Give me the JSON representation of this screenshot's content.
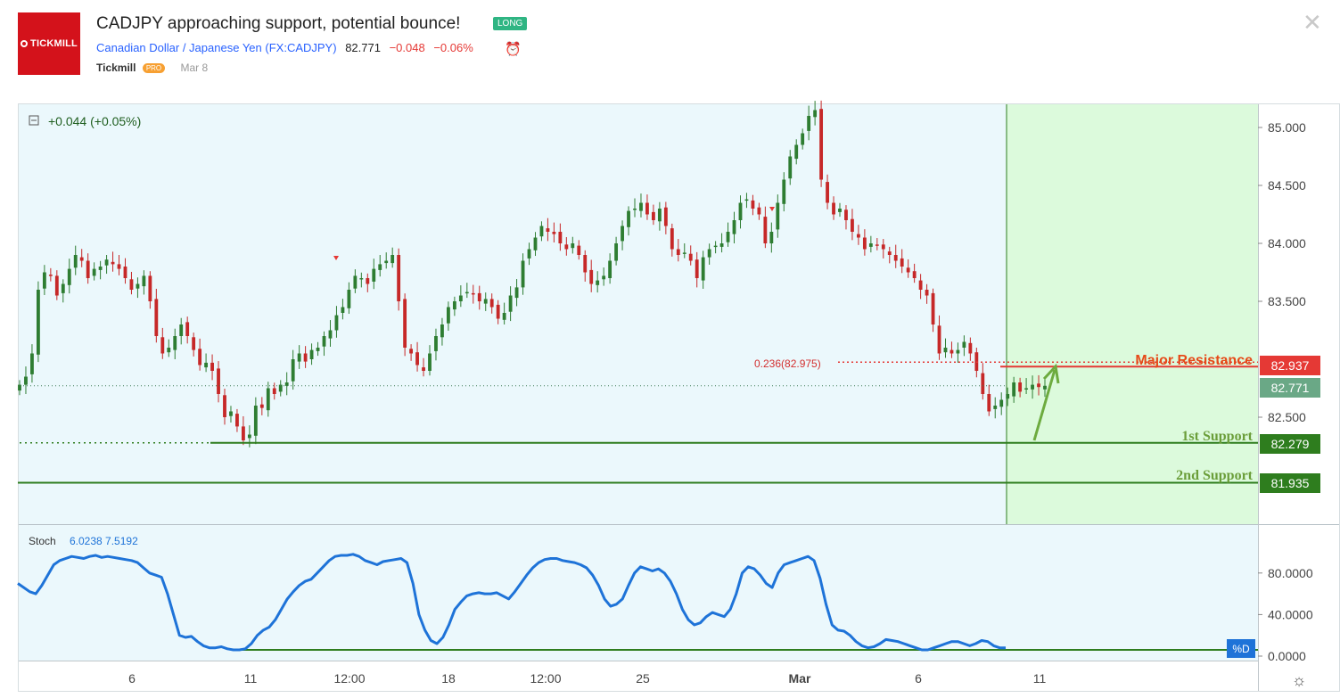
{
  "header": {
    "logo_text": "TICKMILL",
    "title": "CADJPY approaching support, potential bounce!",
    "badge": "LONG",
    "instrument_name": "Canadian Dollar / Japanese Yen",
    "symbol": "(FX:CADJPY)",
    "price": "82.771",
    "change": "−0.048",
    "change_pct": "−0.06%",
    "author": "Tickmill",
    "author_badge": "PRO",
    "date": "Mar 8"
  },
  "colors": {
    "up": "#2e7d32",
    "down": "#c62828",
    "resistance": "#e53935",
    "support": "#2e7d1e",
    "stoch_line": "#1e73d8",
    "target_zone": "#dcfadc",
    "chart_bg": "#ebf8fc"
  },
  "chart_data": [
    {
      "type": "candlestick",
      "legend_text": "+0.044 (+0.05%)",
      "ylim": [
        81.7,
        85.2
      ],
      "y_ticks": [
        "85.000",
        "84.500",
        "84.000",
        "83.500",
        "82.500"
      ],
      "x_tick_labels": [
        "6",
        "11",
        "12:00",
        "18",
        "12:00",
        "25",
        "Mar",
        "6",
        "11"
      ],
      "closes": [
        82.78,
        82.85,
        83.05,
        83.6,
        83.75,
        83.72,
        83.55,
        83.65,
        83.78,
        83.9,
        83.85,
        83.7,
        83.78,
        83.8,
        83.86,
        83.82,
        83.78,
        83.7,
        83.6,
        83.65,
        83.72,
        83.5,
        83.2,
        83.05,
        83.1,
        83.2,
        83.3,
        83.2,
        83.08,
        82.95,
        82.97,
        82.9,
        82.7,
        82.5,
        82.55,
        82.42,
        82.3,
        82.35,
        82.6,
        82.58,
        82.75,
        82.7,
        82.78,
        82.8,
        83.0,
        83.05,
        82.98,
        83.08,
        83.1,
        83.2,
        83.25,
        83.38,
        83.45,
        83.6,
        83.72,
        83.7,
        83.65,
        83.78,
        83.82,
        83.85,
        83.9,
        83.5,
        83.1,
        83.05,
        82.95,
        82.9,
        83.05,
        83.2,
        83.3,
        83.45,
        83.5,
        83.55,
        83.58,
        83.56,
        83.5,
        83.52,
        83.45,
        83.35,
        83.4,
        83.55,
        83.62,
        83.85,
        83.95,
        84.05,
        84.15,
        84.1,
        84.08,
        84.0,
        83.95,
        84.0,
        83.9,
        83.75,
        83.65,
        83.68,
        83.72,
        83.85,
        84.0,
        84.15,
        84.28,
        84.3,
        84.35,
        84.25,
        84.2,
        84.3,
        84.15,
        83.95,
        83.9,
        83.92,
        83.85,
        83.7,
        83.88,
        83.95,
        83.98,
        84.0,
        84.1,
        84.2,
        84.35,
        84.38,
        84.3,
        84.25,
        84.0,
        84.1,
        84.35,
        84.55,
        84.75,
        84.85,
        84.95,
        85.1,
        85.15,
        84.55,
        84.35,
        84.25,
        84.3,
        84.2,
        84.1,
        84.05,
        83.95,
        84.0,
        83.98,
        83.95,
        83.9,
        83.85,
        83.8,
        83.75,
        83.7,
        83.6,
        83.55,
        83.3,
        83.05,
        83.1,
        83.05,
        83.08,
        83.15,
        83.05,
        82.9,
        82.7,
        82.55,
        82.6,
        82.65,
        82.7,
        82.8,
        82.72,
        82.75,
        82.78,
        82.76,
        82.771
      ],
      "annotations": {
        "fib_level": 82.975,
        "fib_label": "0.236(82.975)",
        "major_resistance": 82.937,
        "major_resistance_label": "Major Resistance",
        "first_support": 82.279,
        "first_support_label": "1st Support",
        "second_support": 81.935,
        "second_support_label": "2nd Support",
        "last_price": 82.771
      },
      "price_labels": {
        "major_resistance": "82.937",
        "last_price": "82.771",
        "first_support": "82.279",
        "second_support": "81.935"
      }
    },
    {
      "type": "line",
      "name": "Stoch",
      "legend_text": "Stoch",
      "legend_values": "6.0238  7.5192",
      "ylim": [
        0,
        100
      ],
      "y_ticks": [
        "80.0000",
        "40.0000",
        "0.0000"
      ],
      "series_label": "%D",
      "support_level": 6,
      "values": [
        70,
        66,
        62,
        60,
        68,
        78,
        88,
        92,
        94,
        96,
        95,
        94,
        96,
        97,
        95,
        96,
        95,
        94,
        93,
        92,
        90,
        85,
        80,
        78,
        76,
        60,
        40,
        20,
        18,
        19,
        14,
        10,
        8,
        8,
        9,
        7,
        6,
        6,
        7,
        12,
        20,
        25,
        28,
        35,
        45,
        55,
        62,
        68,
        72,
        74,
        80,
        86,
        92,
        96,
        97,
        97,
        98,
        96,
        92,
        90,
        88,
        91,
        92,
        93,
        94,
        90,
        70,
        40,
        25,
        15,
        12,
        18,
        30,
        45,
        52,
        58,
        60,
        61,
        60,
        60,
        61,
        58,
        55,
        62,
        70,
        78,
        85,
        90,
        93,
        94,
        94,
        92,
        91,
        90,
        88,
        85,
        78,
        68,
        55,
        48,
        50,
        55,
        68,
        80,
        86,
        84,
        82,
        84,
        80,
        72,
        60,
        45,
        35,
        30,
        32,
        38,
        42,
        40,
        38,
        45,
        60,
        80,
        86,
        84,
        78,
        70,
        66,
        80,
        88,
        90,
        92,
        94,
        96,
        92,
        75,
        50,
        30,
        25,
        24,
        20,
        14,
        10,
        8,
        9,
        12,
        16,
        15,
        14,
        12,
        10,
        8,
        6,
        6,
        8,
        10,
        12,
        14,
        14,
        12,
        10,
        12,
        15,
        14,
        10,
        8,
        8
      ]
    }
  ]
}
